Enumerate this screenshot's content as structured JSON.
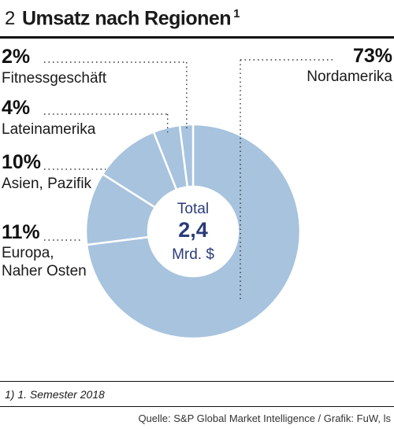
{
  "header": {
    "number": "2",
    "title": "Umsatz nach Regionen",
    "title_note": "1"
  },
  "chart_data": {
    "type": "pie",
    "donut": true,
    "categories": [
      "Nordamerika",
      "Europa, Naher Osten",
      "Asien, Pazifik",
      "Lateinamerika",
      "Fitnessgeschäft"
    ],
    "values": [
      73,
      11,
      10,
      4,
      2
    ],
    "value_labels": [
      "73%",
      "11%",
      "10%",
      "4%",
      "2%"
    ],
    "center_label": {
      "line1": "Total",
      "line2": "2,4",
      "line3": "Mrd. $"
    },
    "colors": {
      "slice": "#a7c3de",
      "separator": "#ffffff",
      "center_text": "#2a3c7a",
      "leader": "#333333"
    },
    "legend": "none"
  },
  "footer": {
    "footnote": "1) 1. Semester 2018",
    "source": "Quelle: S&P Global Market Intelligence / Grafik: FuW, ls"
  }
}
